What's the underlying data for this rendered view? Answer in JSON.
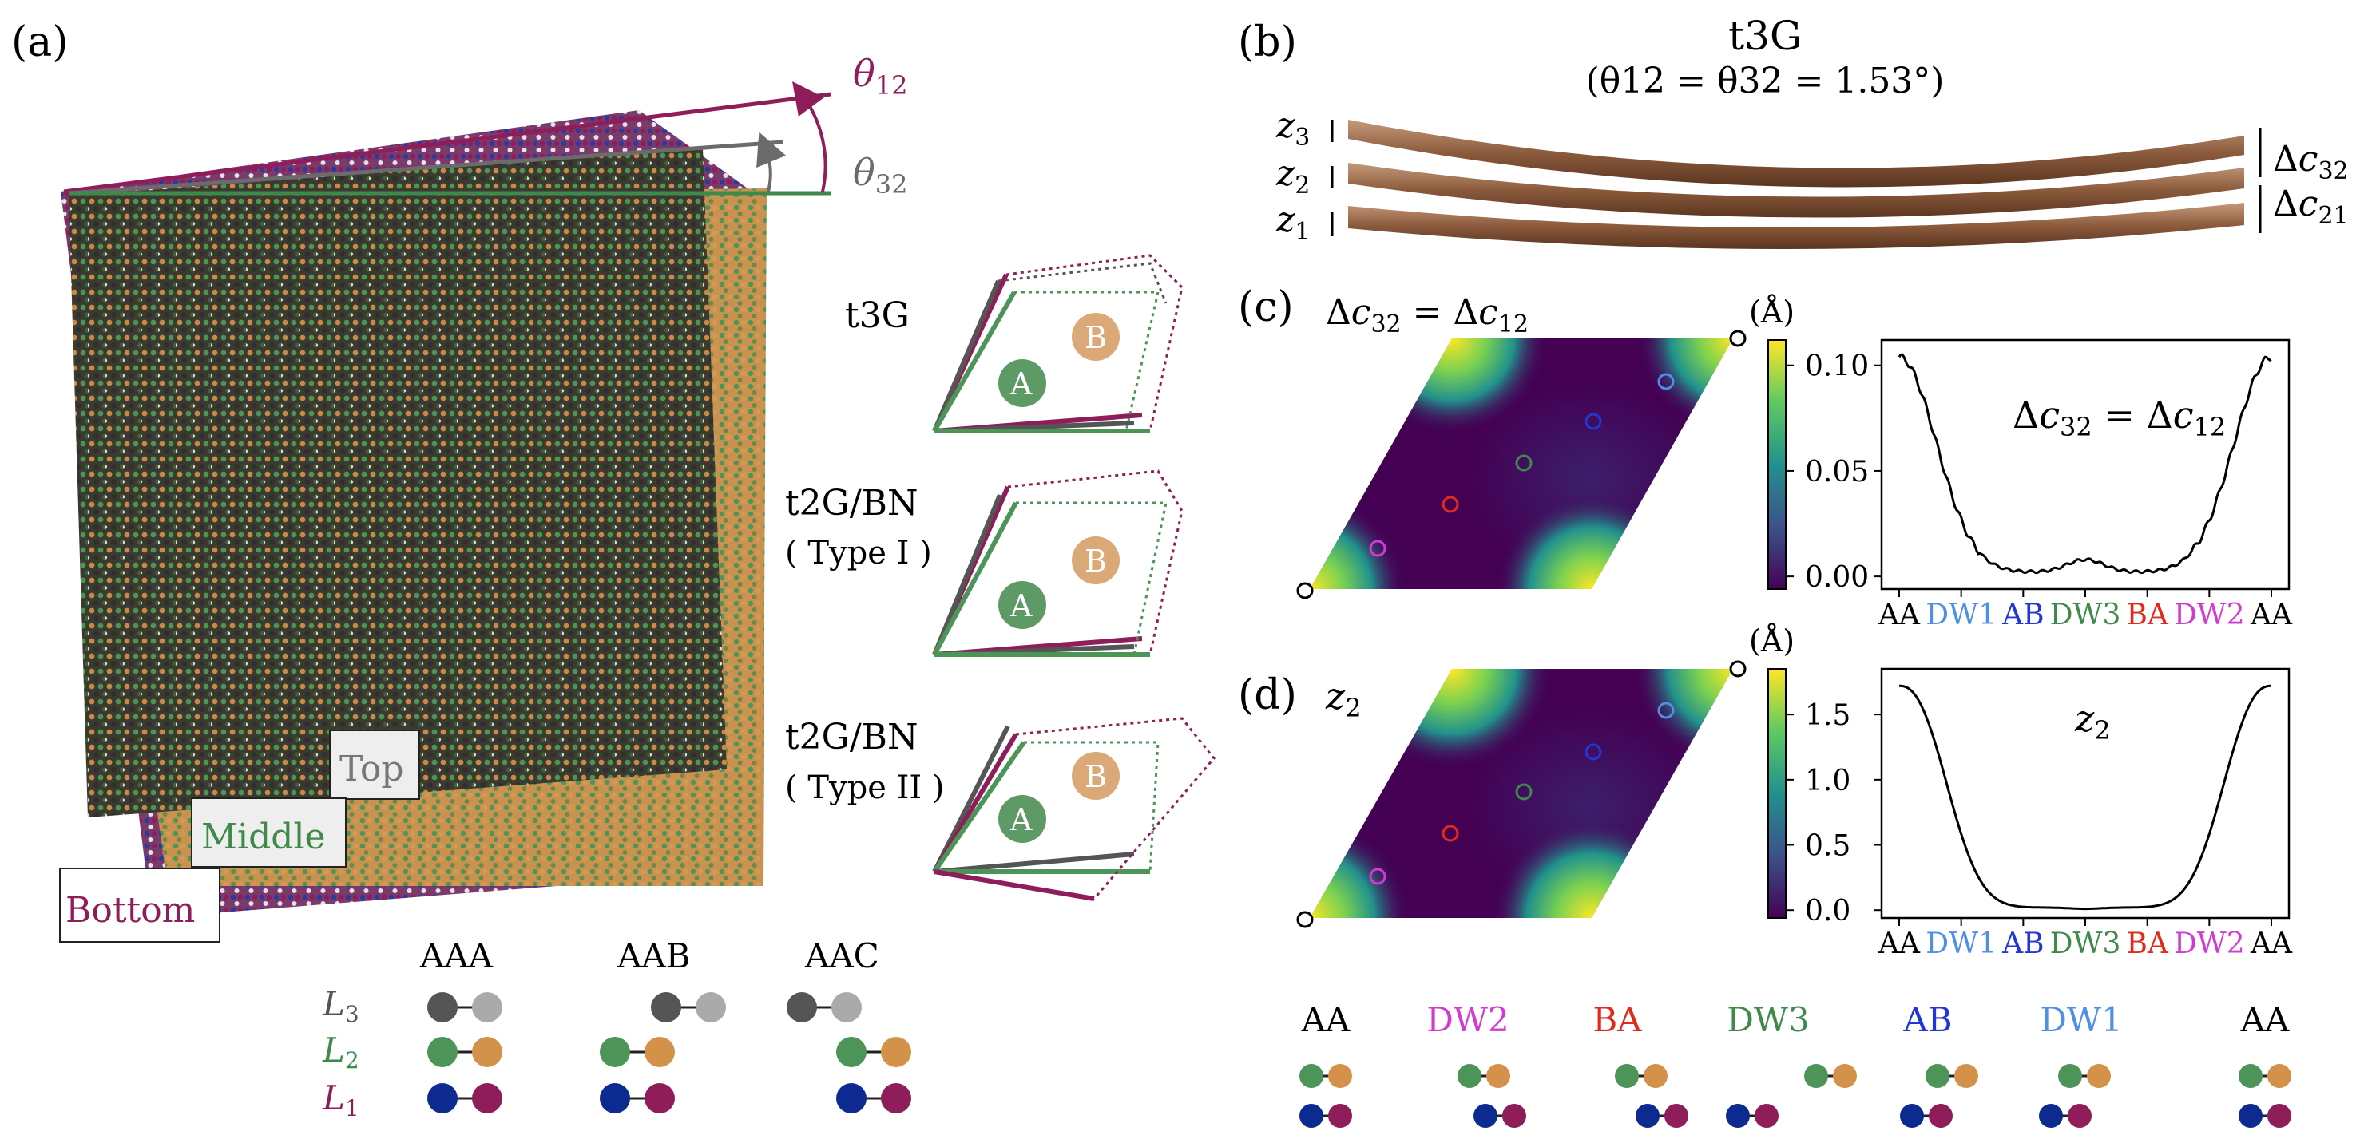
{
  "figure": {
    "panel_labels": {
      "a": "(a)",
      "b": "(b)",
      "c": "(c)",
      "d": "(d)"
    },
    "colors": {
      "L1_blue": "#0c2a8f",
      "L1_red": "#8e1d5a",
      "L2_green": "#4d9459",
      "L2_orange": "#d4914a",
      "L3_dark": "#555555",
      "L3_light": "#aaaaaa",
      "theta12": "#8e1d5a",
      "theta32": "#6b6b6b",
      "green_line": "#3f8a4b",
      "graphene_brown": "#8b5a3c"
    }
  },
  "panel_a": {
    "theta12": "θ12",
    "theta32": "θ32",
    "tags": {
      "top": "Top",
      "middle": "Middle",
      "bottom": "Bottom"
    },
    "schematics": [
      {
        "label": "t3G",
        "sub": ""
      },
      {
        "label": "t2G/BN",
        "sub": "( Type I )"
      },
      {
        "label": "t2G/BN",
        "sub": "( Type II )"
      }
    ],
    "site_A": "A",
    "site_B": "B",
    "stacking": {
      "columns": [
        "AAA",
        "AAB",
        "AAC"
      ],
      "rows": [
        "L3",
        "L2",
        "L1"
      ]
    }
  },
  "panel_b": {
    "title": "t3G",
    "subtitle": "(θ12 = θ32 = 1.53°)",
    "z_labels": [
      "z3",
      "z2",
      "z1"
    ],
    "dc_labels": [
      "Δc32",
      "Δc21"
    ]
  },
  "panel_c": {
    "map_title": "Δc32 = Δc12",
    "unit": "(Å)",
    "colorbar_ticks": [
      "0.10",
      "0.05",
      "0.00"
    ],
    "plot_label": "Δc32 = Δc12",
    "path_ticks": [
      "AA",
      "DW1",
      "AB",
      "DW3",
      "BA",
      "DW2",
      "AA"
    ]
  },
  "panel_d": {
    "map_title": "z2",
    "unit": "(Å)",
    "colorbar_ticks": [
      "1.5",
      "1.0",
      "0.5",
      "0.0"
    ],
    "plot_label": "z2",
    "path_ticks": [
      "AA",
      "DW1",
      "AB",
      "DW3",
      "BA",
      "DW2",
      "AA"
    ]
  },
  "bottom_legend": {
    "labels": [
      "AA",
      "DW2",
      "BA",
      "DW3",
      "AB",
      "DW1",
      "AA"
    ],
    "colors": [
      "#000000",
      "#d23bd2",
      "#e02a1b",
      "#3f8a4b",
      "#2235d6",
      "#4f8fe6",
      "#000000"
    ]
  },
  "path_tick_colors": [
    "#000000",
    "#4f8fe6",
    "#2235d6",
    "#3f8a4b",
    "#e02a1b",
    "#d23bd2",
    "#000000"
  ]
}
